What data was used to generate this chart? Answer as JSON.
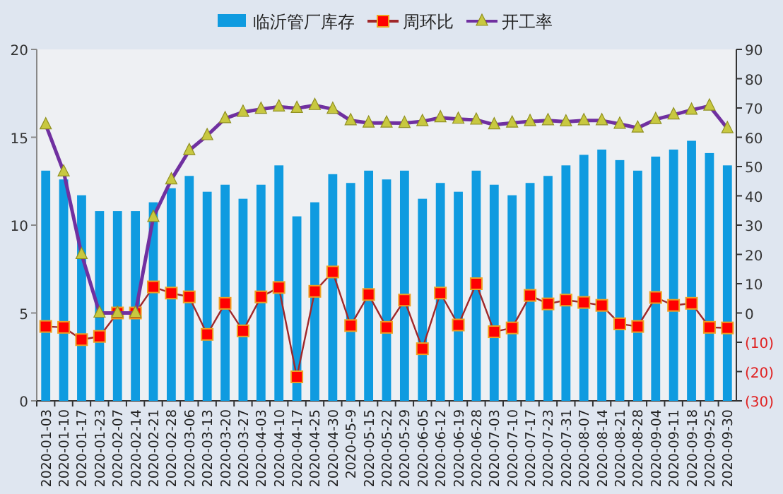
{
  "chart_data": {
    "type": "bar",
    "categories": [
      "2020-01-03",
      "2020-01-10",
      "2020-01-17",
      "2020-01-23",
      "2020-02-07",
      "2020-02-14",
      "2020-02-21",
      "2020-02-28",
      "2020-03-06",
      "2020-03-13",
      "2020-03-20",
      "2020-03-27",
      "2020-04-03",
      "2020-04-10",
      "2020-04-17",
      "2020-04-25",
      "2020-04-30",
      "2020-05-9",
      "2020-05-15",
      "2020-05-22",
      "2020-05-29",
      "2020-06-05",
      "2020-06-12",
      "2020-06-19",
      "2020-06-28",
      "2020-07-03",
      "2020-07-10",
      "2020-07-17",
      "2020-07-23",
      "2020-07-31",
      "2020-08-07",
      "2020-08-14",
      "2020-08-21",
      "2020-08-28",
      "2020-09-04",
      "2020-09-11",
      "2020-09-18",
      "2020-09-25",
      "2020-09-30"
    ],
    "series": [
      {
        "name": "临沂管厂库存",
        "color": "#0f9be0",
        "values": [
          13.1,
          12.6,
          11.7,
          10.8,
          10.8,
          10.8,
          11.3,
          12.1,
          12.8,
          11.9,
          12.3,
          11.5,
          12.3,
          13.4,
          10.5,
          11.3,
          12.9,
          12.4,
          13.1,
          12.6,
          13.1,
          11.5,
          12.4,
          11.9,
          13.1,
          12.3,
          11.7,
          12.4,
          12.8,
          13.4,
          14.0,
          14.3,
          13.7,
          13.1,
          13.9,
          14.3,
          14.8,
          14.1,
          13.4
        ]
      },
      {
        "name": "周环比",
        "type": "line",
        "axis": "y2",
        "marker": "square",
        "color": "#a0282a",
        "values": [
          -4.6,
          -4.9,
          -9.1,
          -8.0,
          0,
          0,
          8.9,
          6.8,
          5.5,
          -7.3,
          3.3,
          -6.1,
          5.5,
          8.7,
          -21.8,
          7.4,
          14.0,
          -4.3,
          6.3,
          -4.9,
          4.4,
          -12.2,
          6.8,
          -4.1,
          10.0,
          -6.4,
          -5.1,
          6.0,
          3.1,
          4.4,
          3.6,
          2.6,
          -3.7,
          -4.6,
          5.3,
          2.6,
          3.3,
          -4.9,
          -5.1
        ]
      },
      {
        "name": "开工率",
        "type": "line",
        "axis": "y2",
        "marker": "triangle",
        "color": "#7030a0",
        "values": [
          64.3,
          48.2,
          20.0,
          0,
          0,
          0,
          32.7,
          45.5,
          55.5,
          60.6,
          66.4,
          68.6,
          69.6,
          70.4,
          69.9,
          70.9,
          69.6,
          65.7,
          64.9,
          64.9,
          64.8,
          65.4,
          66.7,
          66.2,
          65.9,
          64.3,
          64.9,
          65.4,
          65.7,
          65.3,
          65.7,
          65.7,
          64.5,
          63.2,
          66.1,
          67.7,
          69.3,
          70.7,
          63.0
        ]
      }
    ],
    "ylim": [
      0,
      20
    ],
    "yticks": [
      0,
      5,
      10,
      15,
      20
    ],
    "y2lim": [
      -30,
      90
    ],
    "y2ticks": [
      {
        "value": -30,
        "label": "(30)"
      },
      {
        "value": -20,
        "label": "(20)"
      },
      {
        "value": -10,
        "label": "(10)"
      },
      0,
      10,
      20,
      30,
      40,
      50,
      60,
      70,
      80,
      90
    ],
    "legend": "top",
    "grid": false
  }
}
